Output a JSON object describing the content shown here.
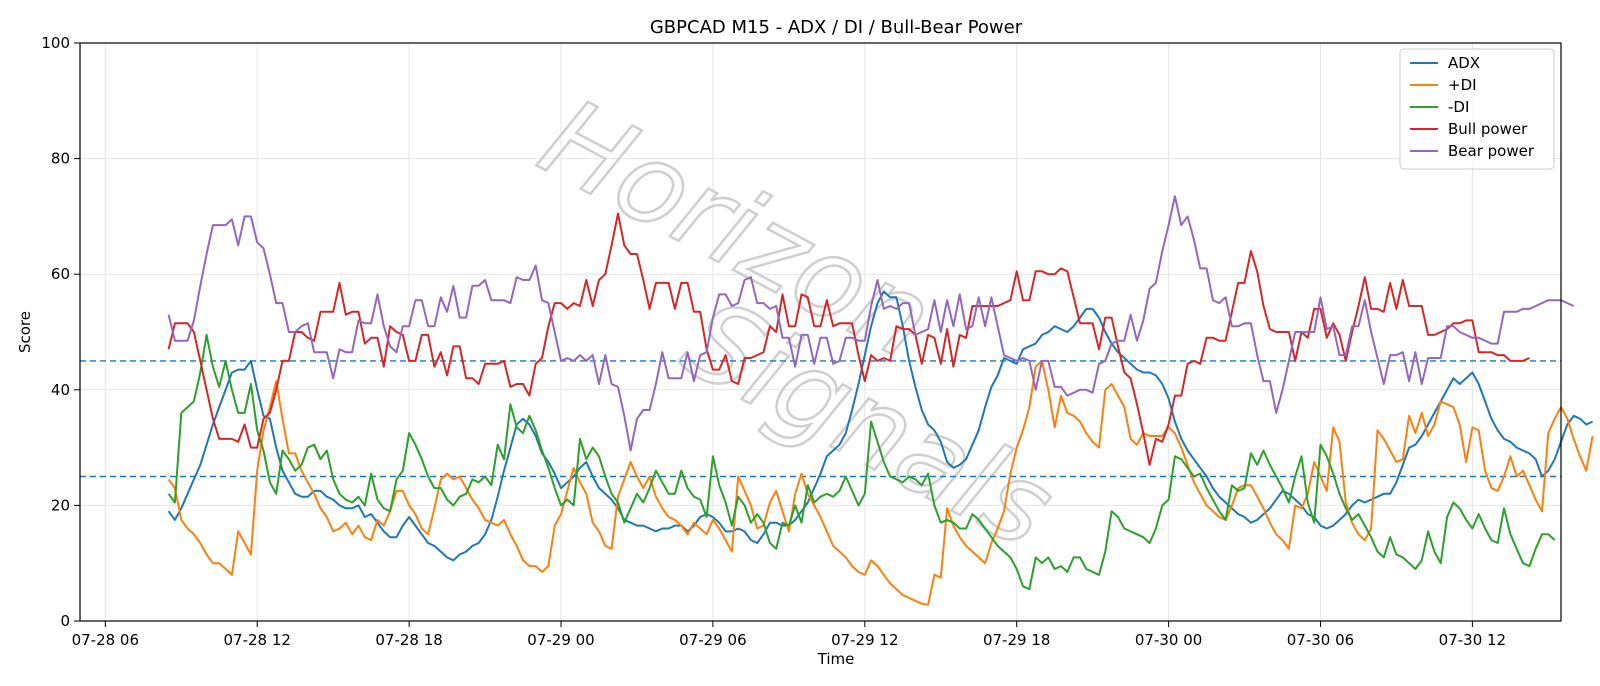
{
  "chart_data": {
    "type": "line",
    "title": "GBPCAD M15 - ADX / DI / Bull-Bear Power",
    "xlabel": "Time",
    "ylabel": "Score",
    "ylim": [
      0,
      100
    ],
    "xlim_hours": [
      -1.0,
      57.5
    ],
    "x_ticks": [
      {
        "label": "07-28 06",
        "hour": 0
      },
      {
        "label": "07-28 12",
        "hour": 6
      },
      {
        "label": "07-28 18",
        "hour": 12
      },
      {
        "label": "07-29 00",
        "hour": 18
      },
      {
        "label": "07-29 06",
        "hour": 24
      },
      {
        "label": "07-29 12",
        "hour": 30
      },
      {
        "label": "07-29 18",
        "hour": 36
      },
      {
        "label": "07-30 00",
        "hour": 42
      },
      {
        "label": "07-30 06",
        "hour": 48
      },
      {
        "label": "07-30 12",
        "hour": 54
      }
    ],
    "y_ticks": [
      0,
      20,
      40,
      60,
      80,
      100
    ],
    "x_start_hour": 2.5,
    "x_step_hours": 0.25,
    "grid": true,
    "legend_position": "top-right",
    "reference_lines": [
      25,
      45
    ],
    "reference_line_color": "#1f77b4",
    "series": [
      {
        "name": "ADX",
        "color": "#1f77b4",
        "values": [
          19,
          17.5,
          19.5,
          22,
          24.5,
          27,
          30.5,
          34,
          37,
          40,
          43,
          43.5,
          43.5,
          45,
          40,
          35.5,
          35,
          30,
          26,
          24,
          22,
          21.5,
          21.5,
          22.5,
          22.5,
          21.5,
          21,
          20,
          19.5,
          19.5,
          20,
          18,
          18.5,
          17,
          15.5,
          14.5,
          14.5,
          16.5,
          18,
          16.5,
          15,
          13.5,
          13,
          12,
          11,
          10.5,
          11.5,
          12,
          13,
          13.5,
          15,
          17.5,
          21.5,
          26,
          30,
          34,
          35,
          34,
          32,
          29,
          27.5,
          25.5,
          23,
          24,
          25,
          26.5,
          27.5,
          25,
          23,
          22,
          21,
          19.5,
          17.5,
          17,
          16.5,
          16.5,
          16,
          15.5,
          16,
          16,
          16.5,
          16.5,
          15.5,
          16.5,
          18,
          18.5,
          18,
          17,
          15.5,
          15.5,
          16,
          15.5,
          14,
          13.5,
          15,
          17,
          17,
          16.5,
          16.5,
          17.5,
          19,
          20.5,
          23,
          25.5,
          28.5,
          29.5,
          30.5,
          32.5,
          36.5,
          41,
          46,
          51,
          55,
          57,
          56,
          56,
          51,
          45,
          40.5,
          36.5,
          34,
          33,
          31,
          27.5,
          26.5,
          27,
          28,
          30.5,
          33,
          37,
          40.5,
          42.5,
          45.5,
          45,
          44.5,
          47,
          47.5,
          48,
          49.5,
          50,
          51,
          50.5,
          50,
          51,
          52.5,
          54,
          54,
          52.5,
          50,
          48,
          46.5,
          45.5,
          44.5,
          43.5,
          43,
          43,
          42.5,
          41,
          38.5,
          34.5,
          31.5,
          29.5,
          28,
          26.5,
          25,
          23,
          21.5,
          20.5,
          19.5,
          18.5,
          18,
          17,
          17.5,
          18.5,
          19.5,
          21,
          22.5,
          22,
          21,
          20,
          18.5,
          18,
          16.5,
          16,
          16.5,
          17.5,
          18.5,
          20,
          21,
          20.5,
          21,
          21.5,
          22,
          22,
          24,
          27,
          30,
          30.5,
          32,
          34,
          36,
          38,
          40,
          42,
          41,
          42,
          43,
          41,
          38,
          35,
          33,
          31.5,
          31,
          30,
          29.5,
          29,
          28,
          25,
          26,
          28,
          31,
          34,
          35.5,
          35,
          34,
          34.5
        ]
      },
      {
        "name": "+DI",
        "color": "#ff7f0e",
        "values": [
          24.5,
          23,
          17.5,
          16,
          15,
          13.5,
          11.5,
          10,
          10,
          9,
          8,
          15.5,
          13.5,
          11.5,
          26,
          33,
          37,
          41.5,
          35,
          29,
          29,
          26,
          24,
          22,
          19.5,
          18,
          15.5,
          16,
          17,
          15,
          16.5,
          14.5,
          14,
          17.5,
          16.5,
          19,
          22.5,
          22.5,
          20,
          18.5,
          16,
          15,
          19.5,
          24.5,
          25.5,
          24.5,
          25,
          23,
          21,
          19.5,
          17.5,
          17,
          16.5,
          17.5,
          15,
          13,
          10.5,
          9.5,
          9.5,
          8.5,
          9.5,
          16.5,
          18.5,
          22.5,
          26.5,
          24,
          22,
          17,
          15.5,
          13,
          12.5,
          21.5,
          24.5,
          27.5,
          25,
          23,
          25,
          21.5,
          19.5,
          18,
          17.5,
          16.5,
          15,
          17,
          16,
          15,
          17.5,
          16,
          14,
          12,
          25,
          22.5,
          20,
          16,
          16.5,
          20.5,
          22.5,
          19,
          15.5,
          22,
          25.5,
          22,
          20,
          18,
          15.5,
          13,
          12,
          11,
          9.5,
          8.5,
          8,
          10.5,
          9.5,
          8,
          6.5,
          5.5,
          4.5,
          4,
          3.5,
          3,
          2.8,
          8,
          7.5,
          19.5,
          16.5,
          14.5,
          13,
          12,
          11,
          10,
          13.5,
          16,
          19,
          25.5,
          30,
          33,
          37,
          44,
          45,
          40,
          33.5,
          39,
          36,
          35.5,
          34.5,
          32.5,
          31,
          30,
          40,
          41,
          39,
          37,
          31.5,
          30.5,
          32.5,
          32,
          32,
          32,
          33.5,
          32.5,
          30,
          27,
          24,
          22,
          20,
          19,
          18,
          17.5,
          20,
          23,
          23.5,
          23.5,
          21.5,
          19.5,
          17,
          15,
          14,
          12.5,
          20,
          19.5,
          22,
          27.5,
          25,
          22.5,
          33.5,
          31,
          20.5,
          17,
          15,
          14,
          16,
          33,
          31.5,
          29.5,
          27.5,
          28,
          35.5,
          32.5,
          36,
          32,
          34,
          38,
          37.5,
          37,
          34,
          27.5,
          33.5,
          33,
          26,
          23,
          22.5,
          25,
          28.5,
          25,
          26,
          23.5,
          21,
          19,
          32.5,
          35,
          37,
          35,
          31.5,
          28.5,
          26,
          32
        ]
      },
      {
        "name": "-DI",
        "color": "#2ca02c",
        "values": [
          22,
          20.5,
          36,
          37,
          38,
          43,
          49.5,
          44,
          40.5,
          45,
          40,
          36,
          36,
          41,
          33,
          29.5,
          24,
          22,
          29.5,
          28,
          26,
          27,
          30,
          30.5,
          28,
          29.5,
          24.5,
          22,
          21,
          20.5,
          21.5,
          20,
          25.5,
          21,
          19.5,
          19,
          24.5,
          26,
          32.5,
          30.5,
          28,
          25,
          23,
          23,
          21,
          20,
          21.5,
          22,
          24.5,
          24,
          25,
          23.5,
          30.5,
          28,
          37.5,
          33.5,
          32.5,
          35.5,
          33,
          29.5,
          26.5,
          23,
          20,
          21,
          20,
          31.5,
          28,
          30,
          28.5,
          25,
          22,
          20.5,
          17,
          19.5,
          22,
          20.5,
          23,
          26,
          24,
          22,
          22,
          26,
          23,
          21.5,
          21,
          18,
          28.5,
          23.5,
          20.5,
          16.5,
          21.5,
          20,
          17,
          18.5,
          17,
          13.5,
          12.5,
          17,
          16.5,
          20,
          17,
          23.5,
          20.5,
          21.5,
          22,
          21.5,
          22.5,
          25,
          22.5,
          20,
          22,
          34.5,
          31,
          27.5,
          25,
          24.5,
          24,
          25,
          24.5,
          23.5,
          25.5,
          20,
          17,
          17.5,
          17,
          16,
          16,
          18.5,
          17.5,
          16,
          14.5,
          13,
          12,
          11,
          9,
          6,
          5.5,
          11,
          10,
          11,
          9,
          9.5,
          8.5,
          11,
          11,
          9,
          8.5,
          8,
          12,
          19,
          18,
          16,
          15.5,
          15,
          14.5,
          13.5,
          16,
          20,
          21,
          28.5,
          28,
          26.5,
          25,
          25.5,
          23,
          21,
          19,
          17.5,
          23.5,
          22.5,
          23,
          29,
          27,
          29.5,
          27,
          25,
          23,
          20.5,
          25,
          28.5,
          20.5,
          17,
          30.5,
          28.5,
          25.5,
          22,
          19.5,
          17.5,
          18.5,
          16.5,
          14.5,
          12,
          11,
          14.5,
          11.5,
          11,
          10,
          9,
          10.5,
          15.5,
          12,
          10,
          18,
          20.5,
          19.5,
          17.5,
          16,
          18.5,
          16,
          14,
          13.5,
          19.5,
          15,
          12.5,
          10,
          9.5,
          12.5,
          15,
          15,
          14
        ]
      },
      {
        "name": "Bull power",
        "color": "#d62728",
        "values": [
          47,
          51.5,
          51.5,
          51.5,
          50,
          45,
          40,
          35,
          31.5,
          31.5,
          31.5,
          31,
          34,
          30,
          30,
          35,
          36,
          40,
          45,
          45,
          50,
          50,
          49,
          48.5,
          53.5,
          53.5,
          53.5,
          58.5,
          53,
          53.5,
          53.5,
          48,
          49,
          49,
          44,
          51,
          50,
          49.5,
          45,
          45,
          49.5,
          49.5,
          44,
          46.5,
          42.5,
          47.5,
          47.5,
          42,
          42,
          41,
          44.5,
          44.5,
          44.5,
          45,
          40.5,
          41,
          41,
          39,
          44.5,
          45.5,
          51,
          55,
          55,
          54,
          55,
          54.5,
          59,
          54.5,
          59,
          60,
          65,
          70.5,
          65,
          63.5,
          63.5,
          59,
          54,
          58.5,
          58.5,
          58.5,
          54,
          58.5,
          58.5,
          53.5,
          53.5,
          47,
          43.5,
          43.5,
          46,
          41.5,
          41,
          45.5,
          45.5,
          46,
          46.5,
          51,
          50,
          56.5,
          51,
          51,
          56.5,
          56,
          51,
          51,
          55.5,
          51,
          51.5,
          51.5,
          51.5,
          46,
          41.5,
          46,
          45,
          45.5,
          45,
          51,
          50.5,
          50.5,
          49.5,
          44.5,
          49.5,
          49,
          44.5,
          50.5,
          44,
          49.5,
          49,
          54.5,
          54.5,
          54.5,
          54.5,
          54.5,
          55,
          55.5,
          60.5,
          55.5,
          55.5,
          60.5,
          60.5,
          60,
          60,
          61,
          60.5,
          56,
          51.5,
          51.5,
          51.5,
          47,
          52.5,
          52.5,
          47.5,
          43,
          42,
          37.5,
          32.5,
          27,
          31.5,
          31,
          34,
          39,
          39,
          44.5,
          45,
          44.5,
          49,
          49,
          48.5,
          48.5,
          53.5,
          58.5,
          58.5,
          64,
          60.5,
          54.5,
          50.5,
          50,
          50,
          50,
          45,
          50,
          49,
          54,
          54,
          49,
          51.5,
          49.5,
          45,
          50,
          54.5,
          59.5,
          54,
          54,
          53.5,
          58.5,
          54,
          59,
          54.5,
          54.5,
          54.5,
          49.5,
          49.5,
          50,
          50.5,
          51.5,
          51.5,
          52,
          52,
          46.5,
          46.5,
          46.5,
          46,
          46,
          45,
          45,
          45,
          45.5
        ]
      },
      {
        "name": "Bear power",
        "color": "#9467bd",
        "values": [
          53,
          48.5,
          48.5,
          48.5,
          52,
          58,
          63.5,
          68.5,
          68.5,
          68.5,
          69.5,
          65,
          70,
          70,
          65.5,
          64.5,
          60,
          55,
          55,
          50,
          50,
          51,
          51.5,
          46.5,
          46.5,
          46.5,
          42,
          47,
          46.5,
          46.5,
          52,
          51.5,
          51.5,
          56.5,
          51,
          47.5,
          46.5,
          51,
          51,
          55.5,
          55.5,
          51,
          51,
          56,
          53.5,
          58,
          52.5,
          52.5,
          58,
          58,
          59,
          55.5,
          55.5,
          55.5,
          55,
          59.5,
          59,
          59,
          61.5,
          55.5,
          55,
          50,
          45,
          45.5,
          45,
          46,
          45,
          46,
          41,
          46,
          41,
          40.5,
          35.5,
          29.5,
          35,
          36.5,
          36.5,
          41,
          46.5,
          42,
          42,
          42,
          46.5,
          41.5,
          46,
          46.5,
          52.5,
          56.5,
          56.5,
          54.5,
          55,
          59,
          59.5,
          55,
          55,
          54,
          54.5,
          49,
          49,
          44,
          49.5,
          49.5,
          44.5,
          49,
          49,
          44.5,
          45,
          49,
          49,
          48.5,
          48.5,
          54.5,
          59,
          54,
          54.5,
          54,
          55,
          55,
          49.5,
          50,
          50.5,
          55.5,
          50,
          55.5,
          51,
          56.5,
          50.5,
          51,
          56,
          51,
          56,
          51,
          46,
          45.5,
          45,
          45.5,
          45,
          40,
          45,
          45,
          40.5,
          40.5,
          39,
          39.5,
          40,
          40,
          39.5,
          44.5,
          45,
          48,
          48.5,
          48.5,
          53,
          48.5,
          52,
          57.5,
          58.5,
          64,
          68.5,
          73.5,
          68.5,
          70,
          66,
          61,
          61,
          55.5,
          55,
          56,
          51,
          51,
          51.5,
          51.5,
          46,
          41.5,
          41.5,
          36,
          40,
          45,
          50,
          50,
          50,
          50,
          56,
          50.5,
          51,
          46,
          46,
          51,
          51,
          55.5,
          50,
          45.5,
          41,
          46,
          46,
          46.5,
          41.5,
          46.5,
          41,
          45.5,
          45.5,
          45.5,
          51,
          51,
          50,
          49.5,
          49,
          49,
          48.5,
          48,
          48,
          53.5,
          53.5,
          53.5,
          54,
          54,
          54.5,
          55,
          55.5,
          55.5,
          55.5,
          55,
          54.5
        ]
      }
    ]
  },
  "watermark": {
    "line1": "Horizon",
    "line2": "Signals"
  }
}
